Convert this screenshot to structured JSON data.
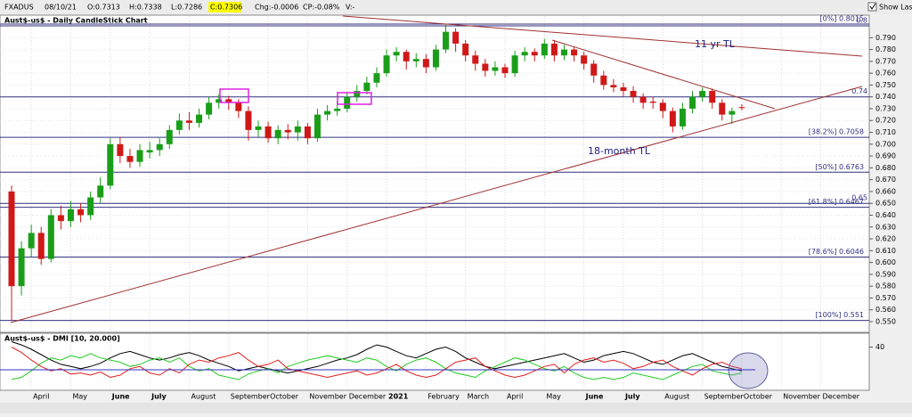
{
  "toolbar": {
    "symbol": "FXADUS",
    "date": "08/10/21",
    "open": "O:0.7313",
    "high": "H:0.7338",
    "low": "L:0.7286",
    "close": "C:0.7306",
    "change": "Chg:-0.0006",
    "change_pct": "CP:-0.08%",
    "volume": "V:-",
    "show_last": "Show Last"
  },
  "chart_data": [
    {
      "type": "candlestick",
      "title": "Aust$-us$ - Daily CandleStick Chart",
      "categories": [
        null,
        null,
        "April",
        null,
        null,
        null,
        "May",
        null,
        null,
        null,
        "June",
        null,
        null,
        null,
        "July",
        null,
        null,
        null,
        "August",
        null,
        null,
        null,
        "September",
        null,
        null,
        null,
        "October",
        null,
        null,
        null,
        "November",
        null,
        null,
        null,
        "December",
        null,
        null,
        null,
        "2021",
        null,
        null,
        null,
        "February",
        null,
        null,
        null,
        "March",
        null,
        null,
        null,
        "April",
        null,
        null,
        null,
        "May",
        null,
        null,
        null,
        "June",
        null,
        null,
        null,
        "July",
        null,
        null,
        null,
        "August",
        null,
        null,
        null,
        "September",
        null,
        null,
        null,
        "October",
        null,
        null,
        null,
        "November",
        null,
        null,
        null,
        "December",
        null,
        null,
        null
      ],
      "open": [
        0.66,
        0.58,
        0.612,
        0.625,
        0.603,
        0.64,
        0.635,
        0.645,
        0.64,
        0.655,
        0.665,
        0.7,
        0.69,
        0.685,
        0.693,
        0.695,
        0.7,
        0.712,
        0.72,
        0.718,
        0.725,
        0.735,
        0.738,
        0.735,
        0.728,
        0.712,
        0.715,
        0.705,
        0.712,
        0.71,
        0.715,
        0.705,
        0.725,
        0.728,
        0.73,
        0.74,
        0.745,
        0.752,
        0.76,
        0.775,
        0.778,
        0.77,
        0.772,
        0.765,
        0.78,
        0.795,
        0.785,
        0.775,
        0.768,
        0.762,
        0.765,
        0.76,
        0.775,
        0.778,
        0.775,
        0.785,
        0.775,
        0.78,
        0.775,
        0.768,
        0.758,
        0.75,
        0.748,
        0.745,
        0.74,
        0.736,
        0.735,
        0.728,
        0.715,
        0.73,
        0.74,
        0.745,
        0.735,
        0.725,
        0.7313,
        null,
        null,
        null,
        null,
        null,
        null,
        null,
        null,
        null,
        null,
        null
      ],
      "high": [
        0.665,
        0.618,
        0.632,
        0.63,
        0.645,
        0.648,
        0.652,
        0.65,
        0.66,
        0.672,
        0.705,
        0.706,
        0.696,
        0.7,
        0.702,
        0.705,
        0.716,
        0.726,
        0.727,
        0.73,
        0.74,
        0.742,
        0.741,
        0.738,
        0.732,
        0.72,
        0.719,
        0.716,
        0.717,
        0.72,
        0.718,
        0.73,
        0.733,
        0.736,
        0.744,
        0.75,
        0.757,
        0.765,
        0.78,
        0.782,
        0.78,
        0.777,
        0.776,
        0.784,
        0.801,
        0.798,
        0.788,
        0.779,
        0.772,
        0.77,
        0.768,
        0.779,
        0.782,
        0.781,
        0.789,
        0.788,
        0.784,
        0.782,
        0.778,
        0.771,
        0.762,
        0.755,
        0.752,
        0.749,
        0.743,
        0.74,
        0.738,
        0.731,
        0.735,
        0.745,
        0.748,
        0.747,
        0.738,
        0.731,
        0.7338,
        null,
        null,
        null,
        null,
        null,
        null,
        null,
        null,
        null,
        null,
        null
      ],
      "low": [
        0.551,
        0.572,
        0.605,
        0.598,
        0.6,
        0.628,
        0.63,
        0.634,
        0.636,
        0.65,
        0.662,
        0.684,
        0.68,
        0.681,
        0.688,
        0.69,
        0.696,
        0.708,
        0.712,
        0.714,
        0.721,
        0.73,
        0.729,
        0.722,
        0.703,
        0.706,
        0.701,
        0.7,
        0.704,
        0.703,
        0.7,
        0.702,
        0.72,
        0.724,
        0.727,
        0.736,
        0.742,
        0.748,
        0.757,
        0.77,
        0.763,
        0.765,
        0.76,
        0.762,
        0.777,
        0.778,
        0.77,
        0.762,
        0.757,
        0.758,
        0.756,
        0.757,
        0.77,
        0.77,
        0.772,
        0.77,
        0.771,
        0.77,
        0.763,
        0.752,
        0.746,
        0.744,
        0.74,
        0.735,
        0.73,
        0.73,
        0.722,
        0.71,
        0.712,
        0.726,
        0.736,
        0.73,
        0.72,
        0.717,
        0.7286,
        null,
        null,
        null,
        null,
        null,
        null,
        null,
        null,
        null,
        null,
        null
      ],
      "close": [
        0.58,
        0.612,
        0.625,
        0.603,
        0.64,
        0.635,
        0.645,
        0.64,
        0.655,
        0.665,
        0.7,
        0.69,
        0.685,
        0.695,
        0.695,
        0.7,
        0.712,
        0.72,
        0.718,
        0.725,
        0.735,
        0.738,
        0.735,
        0.728,
        0.712,
        0.715,
        0.705,
        0.712,
        0.71,
        0.715,
        0.705,
        0.725,
        0.728,
        0.73,
        0.74,
        0.745,
        0.752,
        0.76,
        0.775,
        0.778,
        0.77,
        0.772,
        0.765,
        0.78,
        0.795,
        0.785,
        0.775,
        0.768,
        0.762,
        0.765,
        0.76,
        0.775,
        0.778,
        0.775,
        0.785,
        0.775,
        0.78,
        0.775,
        0.768,
        0.758,
        0.75,
        0.748,
        0.745,
        0.74,
        0.735,
        0.735,
        0.728,
        0.715,
        0.73,
        0.74,
        0.745,
        0.735,
        0.725,
        0.728,
        0.7306,
        null,
        null,
        null,
        null,
        null,
        null,
        null,
        null,
        null,
        null,
        null
      ],
      "up_color": "#1a9e1a",
      "down_color": "#d01818",
      "ylim": [
        0.5417,
        0.8083
      ],
      "yticks": [
        {
          "value": 0.55,
          "label": "0.550"
        },
        {
          "value": 0.56,
          "label": "0.560"
        },
        {
          "value": 0.57,
          "label": "0.570"
        },
        {
          "value": 0.58,
          "label": "0.580"
        },
        {
          "value": 0.59,
          "label": "0.590"
        },
        {
          "value": 0.6,
          "label": "0.600"
        },
        {
          "value": 0.61,
          "label": "0.610"
        },
        {
          "value": 0.62,
          "label": "0.620"
        },
        {
          "value": 0.63,
          "label": "0.630"
        },
        {
          "value": 0.64,
          "label": "0.640"
        },
        {
          "value": 0.65,
          "label": "0.650"
        },
        {
          "value": 0.66,
          "label": "0.660"
        },
        {
          "value": 0.67,
          "label": "0.670"
        },
        {
          "value": 0.68,
          "label": "0.680"
        },
        {
          "value": 0.69,
          "label": "0.690"
        },
        {
          "value": 0.7,
          "label": "0.700"
        },
        {
          "value": 0.71,
          "label": "0.710"
        },
        {
          "value": 0.72,
          "label": "0.720"
        },
        {
          "value": 0.73,
          "label": "0.730"
        },
        {
          "value": 0.74,
          "label": "0.740"
        },
        {
          "value": 0.75,
          "label": "0.750"
        },
        {
          "value": 0.76,
          "label": "0.760"
        },
        {
          "value": 0.77,
          "label": "0.770"
        },
        {
          "value": 0.78,
          "label": "0.780"
        },
        {
          "value": 0.79,
          "label": "0.790"
        }
      ],
      "grid": true,
      "fib_levels": [
        {
          "value": 0.8015,
          "label": "[0%] 0.8015"
        },
        {
          "value": 0.7058,
          "label": "[38.2%] 0.7058"
        },
        {
          "value": 0.6763,
          "label": "[50%] 0.6763"
        },
        {
          "value": 0.6467,
          "label": "[61.8%] 0.6467"
        },
        {
          "value": 0.6046,
          "label": "[78.6%] 0.6046"
        },
        {
          "value": 0.551,
          "label": "[100%] 0.551"
        }
      ],
      "levels": [
        {
          "value": 0.8,
          "label": "0.8"
        },
        {
          "value": 0.74,
          "label": "0.74"
        },
        {
          "value": 0.65,
          "label": "0.65"
        }
      ],
      "annotations": [
        "11 yr TL",
        "18-month TL"
      ]
    },
    {
      "type": "line",
      "title": "Aust$-us$ - DMI [10, 20.000]",
      "ylim": [
        0,
        52
      ],
      "yticks": [
        40
      ],
      "series": [
        {
          "color": "#000000",
          "values": [
            45,
            42,
            38,
            33,
            28,
            24,
            22,
            20,
            22,
            25,
            30,
            34,
            36,
            33,
            30,
            28,
            30,
            33,
            35,
            32,
            28,
            25,
            22,
            18,
            20,
            22,
            20,
            18,
            16,
            18,
            20,
            22,
            25,
            28,
            30,
            33,
            38,
            42,
            40,
            36,
            32,
            30,
            34,
            38,
            40,
            36,
            30,
            26,
            22,
            20,
            22,
            24,
            26,
            28,
            30,
            32,
            34,
            30,
            26,
            28,
            32,
            34,
            36,
            34,
            30,
            26,
            24,
            28,
            32,
            34,
            30,
            26,
            22,
            20,
            18,
            null,
            null,
            null,
            null,
            null,
            null,
            null,
            null,
            null,
            null,
            null
          ]
        },
        {
          "color": "#22cc22",
          "values": [
            10,
            12,
            18,
            25,
            30,
            28,
            32,
            30,
            34,
            30,
            28,
            26,
            22,
            24,
            28,
            30,
            26,
            30,
            22,
            18,
            20,
            14,
            12,
            10,
            15,
            18,
            20,
            16,
            22,
            25,
            28,
            30,
            32,
            30,
            28,
            26,
            30,
            28,
            22,
            18,
            24,
            28,
            30,
            26,
            20,
            16,
            14,
            12,
            18,
            22,
            26,
            30,
            28,
            24,
            20,
            18,
            22,
            16,
            12,
            10,
            12,
            10,
            12,
            16,
            14,
            12,
            10,
            14,
            18,
            22,
            24,
            18,
            16,
            14,
            16,
            null,
            null,
            null,
            null,
            null,
            null,
            null,
            null,
            null,
            null,
            null
          ]
        },
        {
          "color": "#e02020",
          "values": [
            40,
            35,
            28,
            22,
            18,
            20,
            15,
            16,
            14,
            17,
            12,
            14,
            20,
            22,
            16,
            14,
            20,
            16,
            24,
            28,
            26,
            30,
            32,
            35,
            28,
            22,
            24,
            28,
            20,
            18,
            16,
            14,
            12,
            14,
            16,
            18,
            14,
            16,
            20,
            24,
            18,
            14,
            12,
            14,
            20,
            26,
            28,
            30,
            22,
            18,
            14,
            12,
            14,
            18,
            22,
            24,
            16,
            24,
            28,
            30,
            26,
            28,
            25,
            20,
            22,
            26,
            28,
            22,
            18,
            14,
            20,
            24,
            26,
            22,
            20,
            null,
            null,
            null,
            null,
            null,
            null,
            null,
            null,
            null,
            null,
            null
          ]
        }
      ]
    }
  ]
}
